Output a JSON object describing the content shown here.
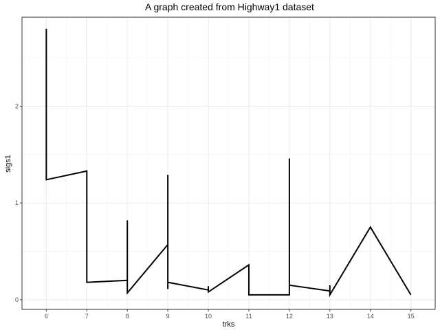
{
  "chart_data": {
    "type": "line",
    "title": "A graph created from Highway1 dataset",
    "xlabel": "trks",
    "ylabel": "sigs1",
    "xlim": [
      5.4,
      15.6
    ],
    "ylim": [
      -0.1,
      2.92
    ],
    "x_ticks": [
      6,
      7,
      8,
      9,
      10,
      11,
      12,
      13,
      14,
      15
    ],
    "y_ticks": [
      0,
      1,
      2
    ],
    "grid": true,
    "legend": "none",
    "line_color": "#000000",
    "series": [
      {
        "points": [
          [
            6,
            2.8
          ],
          [
            6,
            1.24
          ],
          [
            7,
            1.33
          ],
          [
            7,
            0.18
          ],
          [
            8,
            0.2
          ],
          [
            8,
            0.82
          ],
          [
            8,
            0.07
          ],
          [
            9,
            0.57
          ],
          [
            9,
            1.29
          ],
          [
            9,
            0.11
          ],
          [
            9,
            0.18
          ],
          [
            10,
            0.1
          ],
          [
            10,
            0.14
          ],
          [
            10,
            0.08
          ],
          [
            11,
            0.36
          ],
          [
            11,
            0.05
          ],
          [
            12,
            0.05
          ],
          [
            12,
            1.46
          ],
          [
            12,
            0.15
          ],
          [
            13,
            0.09
          ],
          [
            13,
            0.15
          ],
          [
            13,
            0.05
          ],
          [
            14,
            0.75
          ],
          [
            15,
            0.05
          ]
        ]
      }
    ]
  }
}
